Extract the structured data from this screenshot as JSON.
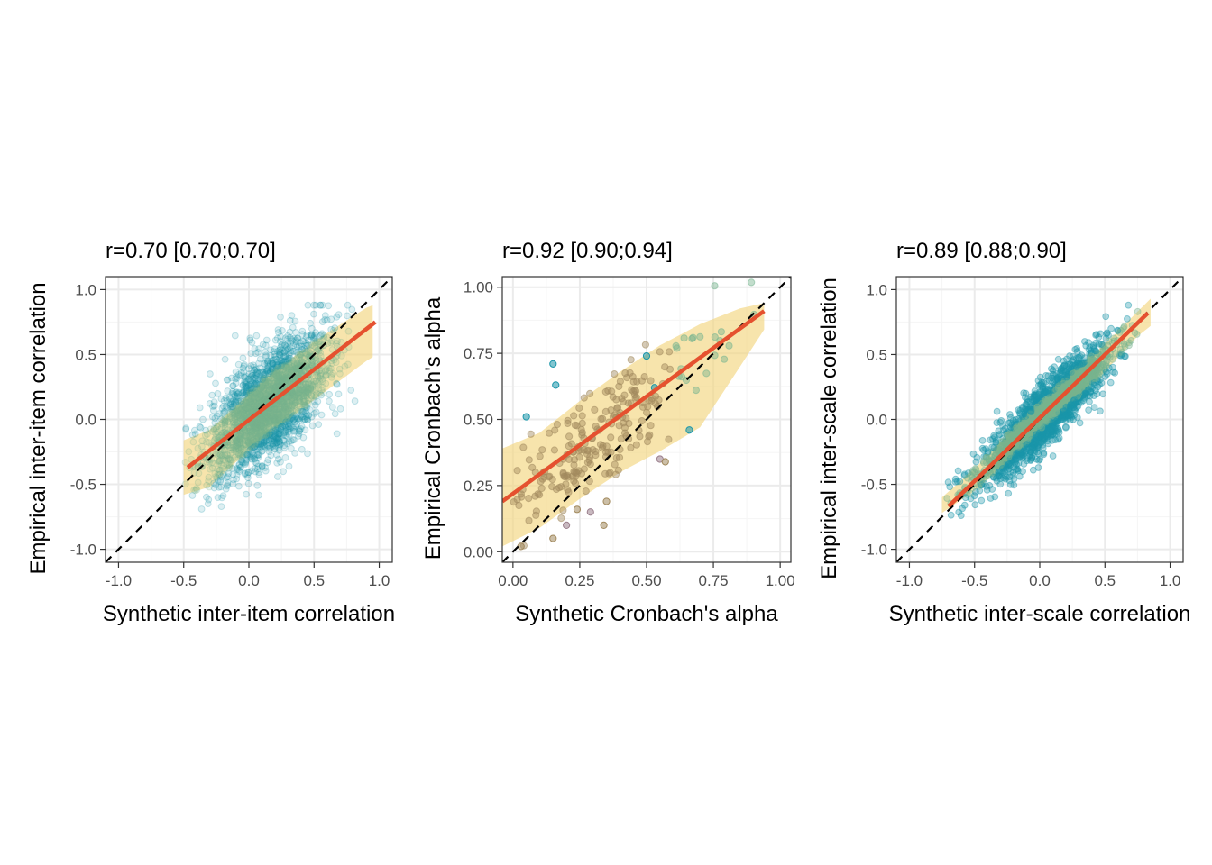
{
  "colors": {
    "points_teal": "#1b96aa",
    "points_green": "#77b48f",
    "points_brown": "#a28a5e",
    "points_mauve": "#9b7f8c",
    "ribbon": "#f2d680",
    "fit_line": "#e5512f",
    "identity_line": "#000000",
    "grid_major": "#ebebeb",
    "grid_minor": "#f5f5f5",
    "panel_border": "#333333"
  },
  "chart_data": [
    {
      "type": "scatter",
      "title": "r=0.70 [0.70;0.70]",
      "xlabel": "Synthetic inter-item correlation",
      "ylabel": "Empirical inter-item correlation",
      "xlim": [
        -1.1,
        1.1
      ],
      "ylim": [
        -1.1,
        1.1
      ],
      "xticks": [
        -1.0,
        -0.5,
        0.0,
        0.5,
        1.0
      ],
      "yticks": [
        -1.0,
        -0.5,
        0.0,
        0.5,
        1.0
      ],
      "xtick_labels": [
        "-1.0",
        "-0.5",
        "0.0",
        "0.5",
        "1.0"
      ],
      "ytick_labels": [
        "-1.0",
        "-0.5",
        "0.0",
        "0.5",
        "1.0"
      ],
      "grid": true,
      "identity_line": true,
      "fit_line": {
        "x": [
          -0.47,
          0.97
        ],
        "y": [
          -0.37,
          0.75
        ]
      },
      "ribbon": {
        "x": [
          -0.5,
          -0.3,
          -0.1,
          0.1,
          0.3,
          0.5,
          0.7,
          0.9,
          0.95
        ],
        "lower": [
          -0.58,
          -0.52,
          -0.33,
          -0.15,
          0.0,
          0.15,
          0.3,
          0.45,
          0.48
        ],
        "upper": [
          -0.16,
          -0.08,
          0.1,
          0.3,
          0.45,
          0.6,
          0.73,
          0.86,
          0.88
        ]
      },
      "cloud": {
        "x_center": 0.15,
        "x_sd": 0.22,
        "x_range": [
          -0.5,
          0.97
        ],
        "y_slope": 0.75,
        "y_intercept": 0.0,
        "y_sd": 0.2,
        "n_points": 2600,
        "point_opacity": 0.15,
        "extremes": {
          "y_max": 0.88,
          "y_min": -0.7
        }
      }
    },
    {
      "type": "scatter",
      "title": "r=0.92 [0.90;0.94]",
      "xlabel": "Synthetic Cronbach's alpha",
      "ylabel": "Empirical Cronbach's alpha",
      "xlim": [
        -0.04,
        1.04
      ],
      "ylim": [
        -0.04,
        1.04
      ],
      "xticks": [
        0.0,
        0.25,
        0.5,
        0.75,
        1.0
      ],
      "yticks": [
        0.0,
        0.25,
        0.5,
        0.75,
        1.0
      ],
      "xtick_labels": [
        "0.00",
        "0.25",
        "0.50",
        "0.75",
        "1.00"
      ],
      "ytick_labels": [
        "0.00",
        "0.25",
        "0.50",
        "0.75",
        "1.00"
      ],
      "grid": true,
      "identity_line": true,
      "fit_line": {
        "x": [
          -0.04,
          0.94
        ],
        "y": [
          0.19,
          0.91
        ]
      },
      "ribbon": {
        "x": [
          -0.04,
          0.1,
          0.25,
          0.4,
          0.55,
          0.7,
          0.85,
          0.94
        ],
        "lower": [
          0.02,
          0.09,
          0.2,
          0.3,
          0.38,
          0.47,
          0.7,
          0.84
        ],
        "upper": [
          0.39,
          0.45,
          0.57,
          0.68,
          0.78,
          0.86,
          0.92,
          0.94
        ]
      },
      "cloud": {
        "x_center": 0.3,
        "x_sd": 0.2,
        "x_range": [
          0.0,
          0.94
        ],
        "y_slope": 0.75,
        "y_intercept": 0.2,
        "y_sd": 0.09,
        "n_points": 230,
        "point_opacity": 0.45,
        "outliers": [
          {
            "x": 0.15,
            "y": 0.71
          },
          {
            "x": 0.16,
            "y": 0.63
          },
          {
            "x": 0.05,
            "y": 0.51
          },
          {
            "x": 0.5,
            "y": 0.74
          },
          {
            "x": 0.53,
            "y": 0.62
          },
          {
            "x": 0.66,
            "y": 0.46
          },
          {
            "x": 0.55,
            "y": 0.35
          },
          {
            "x": 0.57,
            "y": 0.34
          },
          {
            "x": 0.34,
            "y": 0.1
          },
          {
            "x": 0.29,
            "y": 0.15
          },
          {
            "x": 0.24,
            "y": 0.16
          },
          {
            "x": 0.35,
            "y": 0.19
          },
          {
            "x": 0.2,
            "y": 0.1
          },
          {
            "x": 0.15,
            "y": 0.05
          },
          {
            "x": 0.03,
            "y": 0.02
          }
        ]
      }
    },
    {
      "type": "scatter",
      "title": "r=0.89 [0.88;0.90]",
      "xlabel": "Synthetic inter-scale correlation",
      "ylabel": "Empirical inter-scale correlation",
      "xlim": [
        -1.1,
        1.1
      ],
      "ylim": [
        -1.1,
        1.1
      ],
      "xticks": [
        -1.0,
        -0.5,
        0.0,
        0.5,
        1.0
      ],
      "yticks": [
        -1.0,
        -0.5,
        0.0,
        0.5,
        1.0
      ],
      "xtick_labels": [
        "-1.0",
        "-0.5",
        "0.0",
        "0.5",
        "1.0"
      ],
      "ytick_labels": [
        "-1.0",
        "-0.5",
        "0.0",
        "0.5",
        "1.0"
      ],
      "grid": true,
      "identity_line": true,
      "fit_line": {
        "x": [
          -0.7,
          0.83
        ],
        "y": [
          -0.67,
          0.82
        ]
      },
      "ribbon": {
        "x": [
          -0.75,
          -0.5,
          -0.25,
          0.0,
          0.25,
          0.5,
          0.75,
          0.85
        ],
        "lower": [
          -0.72,
          -0.55,
          -0.32,
          -0.08,
          0.14,
          0.37,
          0.64,
          0.72
        ],
        "upper": [
          -0.6,
          -0.38,
          -0.12,
          0.12,
          0.36,
          0.58,
          0.83,
          0.93
        ]
      },
      "cloud": {
        "x_center": 0.05,
        "x_sd": 0.25,
        "x_range": [
          -0.72,
          0.84
        ],
        "y_slope": 0.95,
        "y_intercept": 0.0,
        "y_sd": 0.11,
        "n_points": 2200,
        "point_opacity": 0.35,
        "extremes": {
          "y_max": 0.88,
          "y_min": -0.82
        }
      }
    }
  ]
}
